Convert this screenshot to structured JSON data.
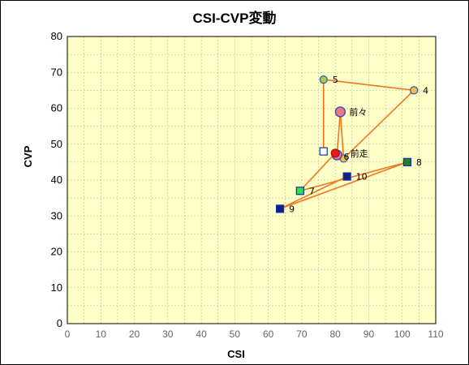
{
  "chart_data": {
    "type": "scatter",
    "title": "CSI-CVP変動",
    "xlabel": "CSI",
    "ylabel": "CVP",
    "xlim": [
      0,
      110
    ],
    "ylim": [
      0,
      80
    ],
    "xticks": [
      0,
      10,
      20,
      30,
      40,
      50,
      60,
      70,
      80,
      90,
      100,
      110
    ],
    "yticks": [
      0,
      10,
      20,
      30,
      40,
      50,
      60,
      70,
      80
    ],
    "x_tick_labels": [
      "0",
      "10",
      "20",
      "30",
      "40",
      "50",
      "60",
      "70",
      "80",
      "90",
      "100",
      "110"
    ],
    "y_tick_labels": [
      "0",
      "10",
      "20",
      "30",
      "40",
      "50",
      "60",
      "70",
      "80"
    ],
    "grid": true,
    "legend": "none",
    "colors": {
      "plot_bg": "#ffffc8",
      "grid": "#b8b8a0",
      "line": "#f07820",
      "circle_fill": "#f5c040",
      "circle_green": "#a8d040",
      "circle_stroke": "#3050d0",
      "red_fill": "#e81818",
      "square_navy": "#102080",
      "square_green": "#30e050",
      "square_dark_green": "#208030",
      "square_stroke": "#1030b0"
    },
    "path": [
      {
        "label": "",
        "x": 76.5,
        "y": 48,
        "marker": "square",
        "fill": "#ffffff"
      },
      {
        "label": "5",
        "x": 76.5,
        "y": 68,
        "marker": "circle",
        "fill": "#a8d040"
      },
      {
        "label": "4",
        "x": 103.5,
        "y": 65,
        "marker": "circle",
        "fill": "#f5c040"
      },
      {
        "label": "",
        "x": 82.5,
        "y": 46,
        "marker": "circle",
        "fill": "#f5c040"
      },
      {
        "label": "前々",
        "x": 81.5,
        "y": 59,
        "marker": "circle-large",
        "fill": "#f07878"
      },
      {
        "label": "",
        "x": 80.5,
        "y": 47,
        "marker": "circle-large",
        "fill": "#f07878"
      },
      {
        "label": "",
        "x": 80,
        "y": 47.5,
        "marker": "circle-red",
        "fill": "#e81818"
      },
      {
        "label": "7",
        "x": 69.5,
        "y": 37,
        "marker": "square",
        "fill": "#30e050"
      },
      {
        "label": "8",
        "x": 101.5,
        "y": 45,
        "marker": "square",
        "fill": "#208030"
      },
      {
        "label": "9",
        "x": 63.5,
        "y": 32,
        "marker": "square",
        "fill": "#102080"
      },
      {
        "label": "10",
        "x": 83.5,
        "y": 41,
        "marker": "square",
        "fill": "#102080"
      }
    ],
    "annotations": [
      {
        "text": "前走",
        "x": 84.5,
        "y": 47.5
      },
      {
        "text": "6",
        "x": 82.5,
        "y": 46.5
      }
    ]
  }
}
